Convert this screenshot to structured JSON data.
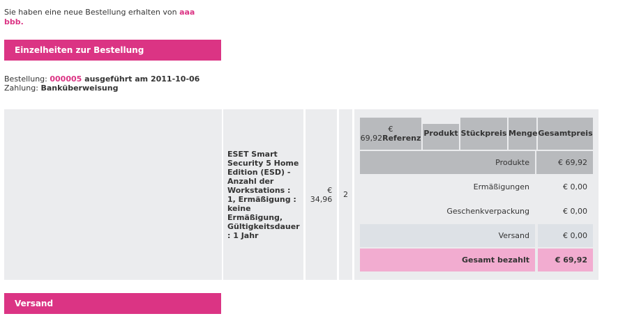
{
  "intro": {
    "text_before": "Sie haben eine neue Bestellung erhalten von ",
    "customer_first": "aaa",
    "customer_last": "bbb",
    "punct": "."
  },
  "details_header": "Einzelheiten zur Bestellung",
  "order": {
    "order_label": "Bestellung: ",
    "order_id": "000005",
    "executed_label": " ausgeführt am ",
    "date": "2011-10-06",
    "payment_label": "Zahlung: ",
    "payment_method": "Banküberweisung"
  },
  "product": {
    "name": "ESET Smart Security 5 Home Edition (ESD) - Anzahl der Workstations : 1, Ermäßigung : keine Ermäßigung, Gültigkeitsdauer : 1 Jahr",
    "unit_price_currency": "€",
    "unit_price_value": "34,96",
    "quantity": "2"
  },
  "inner_headers": {
    "first_currency": "€",
    "first_amount": "69,92",
    "reference": "Referenz",
    "product": "Produkt",
    "unit_price": "Stückpreis",
    "quantity": "Menge",
    "total": "Gesamtpreis"
  },
  "totals": [
    {
      "label": "Produkte",
      "value": "€ 69,92"
    },
    {
      "label": "Ermäßigungen",
      "value": "€ 0,00"
    },
    {
      "label": "Geschenkverpackung",
      "value": "€ 0,00"
    },
    {
      "label": "Versand",
      "value": "€ 0,00"
    },
    {
      "label": "Gesamt bezahlt",
      "value": "€ 69,92"
    }
  ],
  "shipping_header": "Versand",
  "colors": {
    "accent": "#db3484",
    "header_gray": "#b8babd",
    "cell_gray": "#ebecee",
    "row_blue_gray": "#dde1e6",
    "total_pink": "#f2acd0"
  }
}
